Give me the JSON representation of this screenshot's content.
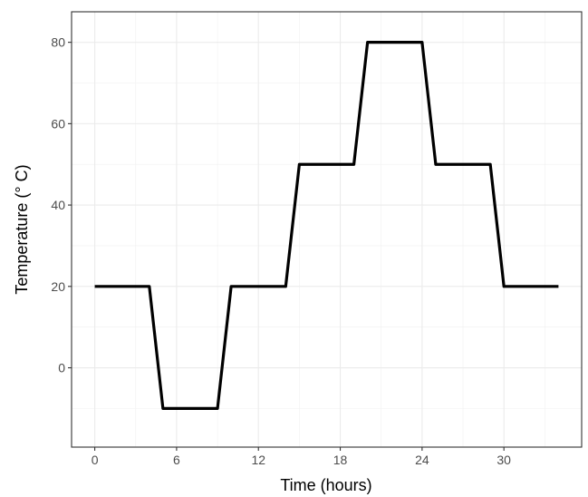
{
  "chart_data": {
    "type": "line",
    "title": "",
    "xlabel": "Time (hours)",
    "ylabel": "Temperature (° C)",
    "xlim": [
      -1.7,
      35.7
    ],
    "ylim": [
      -19.5,
      87.5
    ],
    "xticks": [
      0,
      6,
      12,
      18,
      24,
      30
    ],
    "yticks": [
      0,
      20,
      40,
      60,
      80
    ],
    "xtick_labels": [
      "0",
      "6",
      "12",
      "18",
      "24",
      "30"
    ],
    "ytick_labels": [
      "0",
      "20",
      "40",
      "60",
      "80"
    ],
    "grid": true,
    "legend": "none",
    "line_color": "#000000",
    "series": [
      {
        "x": [
          0,
          4,
          5,
          9,
          10,
          14,
          15,
          19,
          20,
          24,
          25,
          29,
          30,
          34
        ],
        "y": [
          20,
          20,
          -10,
          -10,
          20,
          20,
          50,
          50,
          80,
          80,
          50,
          50,
          20,
          20
        ]
      }
    ]
  }
}
